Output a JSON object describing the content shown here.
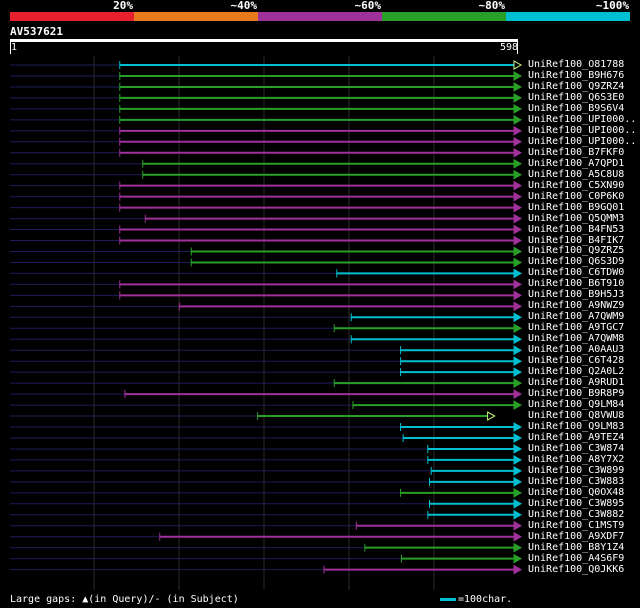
{
  "legend": [
    {
      "label": "20%",
      "color": "#e8202e"
    },
    {
      "label": "~40%",
      "color": "#e87a1e"
    },
    {
      "label": "~60%",
      "color": "#a0309a"
    },
    {
      "label": "~80%",
      "color": "#28a028"
    },
    {
      "label": "~100%",
      "color": "#00bfd0"
    }
  ],
  "query": {
    "id": "AV537621",
    "start": "1",
    "end": "598",
    "length": 598
  },
  "hits": [
    {
      "name": "UniRef100_O81788",
      "start": 130,
      "cls": 4,
      "hollow": true
    },
    {
      "name": "UniRef100_B9H676",
      "start": 130,
      "cls": 3
    },
    {
      "name": "UniRef100_Q9ZRZ4",
      "start": 130,
      "cls": 3
    },
    {
      "name": "UniRef100_Q6S3E0",
      "start": 130,
      "cls": 3
    },
    {
      "name": "UniRef100_B9S6V4",
      "start": 130,
      "cls": 3
    },
    {
      "name": "UniRef100_UPI000..",
      "start": 130,
      "cls": 3
    },
    {
      "name": "UniRef100_UPI000..",
      "start": 130,
      "cls": 2
    },
    {
      "name": "UniRef100_UPI000..",
      "start": 130,
      "cls": 2
    },
    {
      "name": "UniRef100_B7FKF0",
      "start": 130,
      "cls": 2
    },
    {
      "name": "UniRef100_A7QPD1",
      "start": 157,
      "cls": 3
    },
    {
      "name": "UniRef100_A5C8U8",
      "start": 157,
      "cls": 3
    },
    {
      "name": "UniRef100_C5XN90",
      "start": 130,
      "cls": 2
    },
    {
      "name": "UniRef100_C0P6K0",
      "start": 130,
      "cls": 2
    },
    {
      "name": "UniRef100_B9GQ01",
      "start": 130,
      "cls": 2
    },
    {
      "name": "UniRef100_Q5QMM3",
      "start": 160,
      "cls": 2
    },
    {
      "name": "UniRef100_B4FN53",
      "start": 130,
      "cls": 2
    },
    {
      "name": "UniRef100_B4FIK7",
      "start": 130,
      "cls": 2
    },
    {
      "name": "UniRef100_Q9ZRZ5",
      "start": 214,
      "cls": 3
    },
    {
      "name": "UniRef100_Q6S3D9",
      "start": 214,
      "cls": 3
    },
    {
      "name": "UniRef100_C6TDW0",
      "start": 385,
      "cls": 4
    },
    {
      "name": "UniRef100_B6T910",
      "start": 130,
      "cls": 2
    },
    {
      "name": "UniRef100_B9H5J3",
      "start": 130,
      "cls": 2
    },
    {
      "name": "UniRef100_A9NWZ9",
      "start": 200,
      "cls": 2
    },
    {
      "name": "UniRef100_A7QWM9",
      "start": 402,
      "cls": 4
    },
    {
      "name": "UniRef100_A9TGC7",
      "start": 382,
      "cls": 3
    },
    {
      "name": "UniRef100_A7QWM8",
      "start": 402,
      "cls": 4
    },
    {
      "name": "UniRef100_A0AAU3",
      "start": 460,
      "cls": 4
    },
    {
      "name": "UniRef100_C6T428",
      "start": 460,
      "cls": 4
    },
    {
      "name": "UniRef100_Q2A0L2",
      "start": 460,
      "cls": 4
    },
    {
      "name": "UniRef100_A9RUD1",
      "start": 382,
      "cls": 3
    },
    {
      "name": "UniRef100_B9R8P9",
      "start": 136,
      "cls": 2
    },
    {
      "name": "UniRef100_Q9LM84",
      "start": 404,
      "cls": 3
    },
    {
      "name": "UniRef100_Q8VWU8",
      "start": 292,
      "cls": 3,
      "end": 567,
      "hollow": true
    },
    {
      "name": "UniRef100_Q9LM83",
      "start": 460,
      "cls": 4
    },
    {
      "name": "UniRef100_A9TEZ4",
      "start": 463,
      "cls": 4
    },
    {
      "name": "UniRef100_C3W874",
      "start": 492,
      "cls": 4
    },
    {
      "name": "UniRef100_A8Y7X2",
      "start": 492,
      "cls": 4
    },
    {
      "name": "UniRef100_C3W899",
      "start": 496,
      "cls": 4
    },
    {
      "name": "UniRef100_C3W883",
      "start": 494,
      "cls": 4
    },
    {
      "name": "UniRef100_Q0OX48",
      "start": 460,
      "cls": 3
    },
    {
      "name": "UniRef100_C3W895",
      "start": 494,
      "cls": 4
    },
    {
      "name": "UniRef100_C3W882",
      "start": 492,
      "cls": 4
    },
    {
      "name": "UniRef100_C1MST9",
      "start": 408,
      "cls": 2
    },
    {
      "name": "UniRef100_A9XDF7",
      "start": 177,
      "cls": 2
    },
    {
      "name": "UniRef100_B8Y1Z4",
      "start": 418,
      "cls": 3
    },
    {
      "name": "UniRef100_A4S6F9",
      "start": 461,
      "cls": 3
    },
    {
      "name": "UniRef100_Q0JKK6",
      "start": 370,
      "cls": 2
    }
  ],
  "footer": {
    "text": "Large gaps: ▲(in Query)/- (in Subject)"
  },
  "scale": {
    "text": "=100char."
  }
}
